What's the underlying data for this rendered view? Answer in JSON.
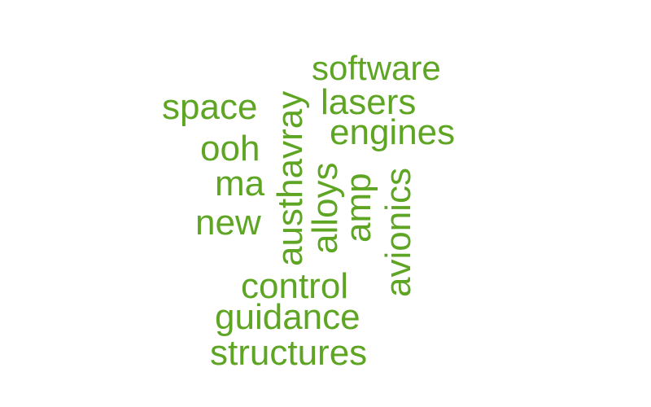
{
  "accent_color": "#5fa524",
  "words": {
    "software": "software",
    "space": "space",
    "lasers": "lasers",
    "engines": "engines",
    "ooh": "ooh",
    "ma": "ma",
    "new": "new",
    "austhavray": "austhavray",
    "alloys": "alloys",
    "amp": "amp",
    "avionics": "avionics",
    "control": "control",
    "guidance": "guidance",
    "structures": "structures"
  }
}
